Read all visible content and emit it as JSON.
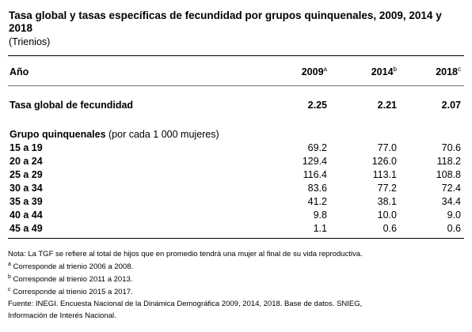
{
  "title": "Tasa global y tasas específicas de fecundidad por grupos quinquenales, 2009, 2014 y 2018",
  "subtitle": "(Trienios)",
  "header": {
    "label": "Año",
    "years": [
      {
        "year": "2009",
        "mark": "a"
      },
      {
        "year": "2014",
        "mark": "b"
      },
      {
        "year": "2018",
        "mark": "c"
      }
    ]
  },
  "tgf": {
    "label": "Tasa global de fecundidad",
    "values": [
      "2.25",
      "2.21",
      "2.07"
    ]
  },
  "group_heading": {
    "bold": "Grupo quinquenales",
    "normal": " (por cada 1 000 mujeres)"
  },
  "rows": [
    {
      "label": "15 a 19",
      "values": [
        "69.2",
        "77.0",
        "70.6"
      ]
    },
    {
      "label": "20 a 24",
      "values": [
        "129.4",
        "126.0",
        "118.2"
      ]
    },
    {
      "label": "25 a 29",
      "values": [
        "116.4",
        "113.1",
        "108.8"
      ]
    },
    {
      "label": "30 a 34",
      "values": [
        "83.6",
        "77.2",
        "72.4"
      ]
    },
    {
      "label": "35 a 39",
      "values": [
        "41.2",
        "38.1",
        "34.4"
      ]
    },
    {
      "label": "40 a 44",
      "values": [
        "9.8",
        "10.0",
        "9.0"
      ]
    },
    {
      "label": "45 a 49",
      "values": [
        "1.1",
        "0.6",
        "0.6"
      ]
    }
  ],
  "notes": {
    "nota": "Nota: La TGF se refiere al total de hijos que en promedio tendrá una mujer al final de su vida reproductiva.",
    "a": {
      "mark": "a",
      "text": " Corresponde al trienio 2006 a 2008."
    },
    "b": {
      "mark": "b",
      "text": " Corresponde al trienio 2011 a 2013."
    },
    "c": {
      "mark": "c",
      "text": " Corresponde al trienio 2015 a 2017."
    },
    "fuente_1": "Fuente: INEGI. Encuesta Nacional de la Dinámica Demográfica 2009, 2014, 2018. Base de datos. SNIEG,",
    "fuente_2": "Información de Interés Nacional."
  }
}
